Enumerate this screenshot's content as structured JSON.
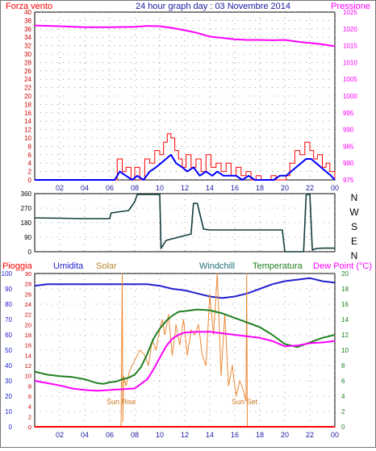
{
  "colors": {
    "wind": "#ff0000",
    "wind_avg": "#0000ff",
    "pressure": "#ff00ff",
    "direction": "#123c3c",
    "rain": "#ff0000",
    "humidity": "#2020d0",
    "solar": "#ee8833",
    "windchill": "#20707a",
    "temperature": "#208020",
    "dewpoint": "#ff00ff",
    "sun_label": "#cc7722",
    "grid": "#555555"
  },
  "chart_data": [
    {
      "type": "line",
      "title": "24 hour graph day : 03 Novembre 2014",
      "left_label": "Forza vento",
      "right_label": "Pressione",
      "x_ticks": [
        "02",
        "04",
        "06",
        "08",
        "10",
        "12",
        "14",
        "16",
        "18",
        "20",
        "22",
        "00"
      ],
      "y_left": {
        "ticks": [
          "0",
          "2",
          "4",
          "6",
          "8",
          "10",
          "12",
          "14",
          "16",
          "18",
          "20",
          "22",
          "24",
          "26",
          "28",
          "30",
          "32",
          "34",
          "36",
          "38",
          "40"
        ],
        "range": [
          0,
          40
        ]
      },
      "y_right": {
        "ticks": [
          "975",
          "980",
          "985",
          "990",
          "995",
          "1000",
          "1005",
          "1010",
          "1015",
          "1020",
          "1025"
        ],
        "range": [
          975,
          1025
        ]
      },
      "x_range": [
        0,
        24
      ],
      "series": [
        {
          "name": "Pressione",
          "axis": "right",
          "x": [
            0,
            2,
            4,
            6,
            8,
            9,
            10,
            11,
            12,
            13,
            14,
            15,
            16,
            17,
            18,
            19,
            20,
            21,
            22,
            23,
            24
          ],
          "y": [
            1021,
            1020.8,
            1020.5,
            1020.5,
            1020.6,
            1020.9,
            1020.8,
            1020.3,
            1019.6,
            1018.8,
            1017.7,
            1017.3,
            1016.9,
            1016.7,
            1016.7,
            1016.6,
            1016.7,
            1016.2,
            1015.8,
            1015.4,
            1014.8
          ]
        },
        {
          "name": "Forza vento",
          "axis": "left",
          "x": [
            0,
            6.3,
            6.6,
            7,
            7.3,
            7.7,
            8,
            8.4,
            8.8,
            9.2,
            9.6,
            10,
            10.3,
            10.6,
            10.9,
            11.2,
            11.5,
            11.8,
            12.1,
            12.5,
            12.9,
            13.3,
            13.7,
            14.1,
            14.5,
            14.9,
            15.3,
            15.7,
            16.1,
            16.5,
            16.9,
            17.3,
            17.7,
            18.1,
            18.5,
            18.9,
            19.3,
            19.7,
            20.1,
            20.4,
            20.8,
            21.2,
            21.6,
            22,
            22.3,
            22.6,
            23,
            23.3,
            23.6,
            24
          ],
          "y": [
            0,
            0,
            5,
            2,
            3,
            0,
            3,
            0,
            5,
            4,
            7,
            6,
            9,
            11,
            10,
            7,
            5,
            3,
            6,
            3,
            5,
            2,
            6,
            3,
            4,
            2,
            4,
            1,
            3,
            1,
            2,
            0,
            1,
            0,
            0,
            1,
            0,
            0,
            1,
            4,
            7,
            6,
            9,
            7,
            5,
            6,
            3,
            4,
            2,
            0
          ]
        },
        {
          "name": "Media vento",
          "axis": "left",
          "x": [
            0,
            6.4,
            6.8,
            7.3,
            7.8,
            8.2,
            8.7,
            9.2,
            9.7,
            10.1,
            10.5,
            10.9,
            11.3,
            11.8,
            12.2,
            12.7,
            13.2,
            13.7,
            14.2,
            14.6,
            15.1,
            15.6,
            16.1,
            16.6,
            17.1,
            17.6,
            18.1,
            18.6,
            19.1,
            19.6,
            20.1,
            20.5,
            20.9,
            21.3,
            21.7,
            22.1,
            22.5,
            22.9,
            23.3,
            23.7,
            24
          ],
          "y": [
            0,
            0,
            2,
            1,
            0,
            1,
            0,
            2,
            3,
            4,
            5,
            6,
            4,
            3,
            2,
            3,
            1,
            2,
            1,
            2,
            1,
            1,
            1,
            0,
            1,
            0,
            0,
            0,
            0,
            1,
            1,
            2,
            3,
            4,
            5,
            5,
            4,
            3,
            2,
            1,
            0
          ]
        }
      ]
    },
    {
      "type": "line",
      "title": "",
      "right_ticks": [
        "N",
        "W",
        "S",
        "E",
        "N"
      ],
      "y_left": {
        "ticks": [
          "0",
          "90",
          "180",
          "270",
          "360"
        ],
        "range": [
          0,
          360
        ]
      },
      "x_range": [
        0,
        24
      ],
      "series": [
        {
          "name": "Direzione vento",
          "x": [
            0,
            4,
            6,
            6.1,
            7,
            7.5,
            8,
            8.2,
            8.3,
            10,
            10.1,
            10.5,
            11,
            12,
            12.5,
            12.7,
            13,
            13.5,
            14,
            18,
            19.8,
            20,
            21.5,
            21.7,
            22,
            22.2,
            22.5,
            23,
            24
          ],
          "y": [
            210,
            205,
            205,
            240,
            250,
            255,
            310,
            355,
            355,
            355,
            20,
            70,
            80,
            100,
            110,
            300,
            300,
            140,
            135,
            135,
            135,
            0,
            0,
            350,
            360,
            10,
            20,
            22,
            22
          ]
        }
      ]
    },
    {
      "type": "line",
      "title": "",
      "header_labels": [
        "Pioggia",
        "Umidita",
        "Solar",
        "Windchill",
        "Temperatura",
        "Dew Point (°C)"
      ],
      "annotations": [
        "Sun Rise",
        "Sun Set"
      ],
      "x_ticks": [
        "02",
        "04",
        "06",
        "08",
        "10",
        "12",
        "14",
        "16",
        "18",
        "20",
        "22",
        "00"
      ],
      "y_humidity": {
        "ticks": [
          "0",
          "10",
          "20",
          "30",
          "40",
          "50",
          "60",
          "70",
          "80",
          "90",
          "100"
        ],
        "range": [
          0,
          100
        ]
      },
      "y_rain": {
        "ticks": [
          "0",
          "2",
          "4",
          "6",
          "8",
          "10",
          "12",
          "14",
          "16",
          "18",
          "20",
          "22",
          "24",
          "26",
          "28",
          "30"
        ],
        "range": [
          0,
          30
        ]
      },
      "y_temp": {
        "ticks": [
          "0",
          "2",
          "4",
          "6",
          "8",
          "10",
          "12",
          "14",
          "16",
          "18",
          "20"
        ],
        "range": [
          0,
          20
        ]
      },
      "x_range": [
        0,
        24
      ],
      "series": [
        {
          "name": "Umidita",
          "x": [
            0,
            1,
            2,
            3,
            4,
            5,
            6,
            7,
            8,
            9,
            10,
            11,
            12,
            13,
            14,
            15,
            16,
            17,
            18,
            19,
            20,
            21,
            22,
            23,
            24
          ],
          "y": [
            92,
            93,
            93,
            93,
            93,
            93,
            93,
            93,
            93,
            93,
            92,
            90,
            89,
            87,
            85,
            84,
            85,
            87,
            90,
            93,
            95,
            96,
            97,
            95,
            94
          ]
        },
        {
          "name": "Temperatura",
          "x": [
            0,
            1,
            2,
            3,
            4,
            5,
            5.5,
            6,
            6.5,
            7,
            7.5,
            8,
            8.5,
            9,
            9.5,
            10,
            10.5,
            11,
            11.5,
            12,
            13,
            14,
            15,
            16,
            17,
            18,
            19,
            20,
            21,
            22,
            23,
            24
          ],
          "y": [
            7.2,
            6.8,
            6.6,
            6.5,
            6.2,
            5.7,
            5.6,
            5.8,
            5.9,
            6.2,
            6.4,
            6.8,
            7.8,
            9.5,
            11.5,
            12.8,
            13.8,
            14.5,
            15.0,
            15.1,
            15.3,
            15.2,
            14.8,
            14.2,
            13.6,
            13.0,
            12.0,
            10.8,
            10.4,
            11.0,
            11.6,
            12.0
          ]
        },
        {
          "name": "Dew Point",
          "x": [
            0,
            1,
            2,
            3,
            4,
            5,
            6,
            7,
            8,
            9,
            9.5,
            10,
            10.5,
            11,
            11.5,
            12,
            13,
            14,
            15,
            16,
            17,
            18,
            19,
            20,
            21,
            22,
            23,
            24
          ],
          "y": [
            6.0,
            5.7,
            5.4,
            5.0,
            4.8,
            4.7,
            4.8,
            4.9,
            5.0,
            6.2,
            7.5,
            9.0,
            10.5,
            11.5,
            12.0,
            12.3,
            12.4,
            12.4,
            12.2,
            12.0,
            11.8,
            11.6,
            11.2,
            10.5,
            10.6,
            10.9,
            11.0,
            11.2
          ]
        },
        {
          "name": "Solar",
          "x": [
            0,
            6.9,
            7.0,
            7.05,
            7.1,
            7.3,
            7.6,
            8,
            8.4,
            8.8,
            9.1,
            9.4,
            9.7,
            10,
            10.2,
            10.4,
            10.7,
            11,
            11.3,
            11.6,
            11.9,
            12.2,
            12.5,
            12.8,
            13.1,
            13.4,
            13.7,
            14,
            14.3,
            14.6,
            14.9,
            15.2,
            15.5,
            15.8,
            16.1,
            16.4,
            16.7,
            16.9,
            16.95,
            17.0,
            24
          ],
          "y": [
            0,
            0,
            30,
            1,
            10,
            8,
            11,
            13,
            15,
            14,
            12,
            17,
            15,
            19,
            21,
            18,
            22,
            14,
            20,
            16,
            21,
            14,
            19,
            18,
            20,
            14,
            12,
            26,
            18,
            30,
            10,
            22,
            8,
            12,
            6,
            9,
            7,
            5,
            30,
            0,
            0
          ]
        },
        {
          "name": "Pioggia",
          "x": [
            0,
            24
          ],
          "y": [
            0,
            0
          ]
        }
      ]
    }
  ]
}
